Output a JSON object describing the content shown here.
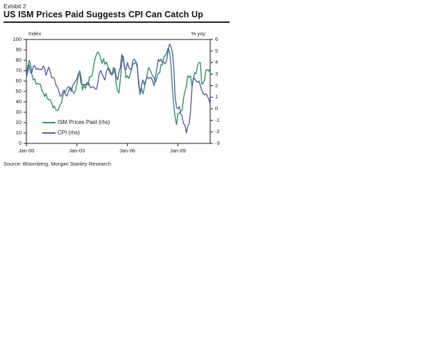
{
  "page": {
    "exhibit_label": "Exhibit 2",
    "title": "US ISM Prices Paid Suggests CPI Can Catch Up",
    "source": "Source: Bloomberg, Morgan Stanley Research"
  },
  "chart_data": {
    "type": "line",
    "title": "US ISM Prices Paid Suggests CPI Can Catch Up",
    "grid": false,
    "legend_position": "inside-bottom-left",
    "left_axis": {
      "label": "Index",
      "lim": [
        0,
        100
      ],
      "ticks": [
        100,
        90,
        80,
        70,
        60,
        50,
        40,
        30,
        20,
        10,
        0
      ]
    },
    "right_axis": {
      "label": "% yoy",
      "lim": [
        -3,
        6
      ],
      "ticks": [
        6,
        5,
        4,
        3,
        2,
        1,
        0,
        -1,
        -2,
        -3
      ]
    },
    "x_axis": {
      "frequency": "monthly",
      "start": "Jan-2000",
      "end": "Dec-2010",
      "months_total": 132,
      "tick_labels": [
        "Jan-00",
        "Jan-03",
        "Jan-06",
        "Jan-09"
      ],
      "tick_month_index": [
        0,
        36,
        72,
        108
      ]
    },
    "series": [
      {
        "name": "ISM Prices Paid (rhs)",
        "axis": "left",
        "color": "#2e8f62",
        "values": [
          65,
          74,
          80,
          76,
          66,
          61,
          62,
          57,
          58,
          57,
          57,
          51,
          49,
          45,
          48,
          43,
          42,
          42,
          39,
          34,
          36,
          32.5,
          31.5,
          33,
          37,
          39,
          45,
          50,
          50,
          53,
          54.5,
          54,
          53,
          50,
          48,
          51,
          57,
          65.5,
          70,
          63.5,
          51.5,
          56.5,
          53,
          57.5,
          56,
          64,
          64,
          66,
          75.5,
          81.5,
          86,
          88,
          86,
          81,
          77,
          81.5,
          76,
          78.5,
          74,
          72,
          69,
          65.5,
          73,
          71,
          58,
          50.5,
          48.5,
          62.5,
          78,
          84,
          74,
          63,
          65,
          62.5,
          66.5,
          71.5,
          77,
          76.5,
          78.5,
          73,
          61,
          47,
          53.5,
          47.5,
          53,
          59,
          65.5,
          73,
          71,
          68,
          65,
          63,
          59,
          63,
          67.5,
          68,
          76,
          75.5,
          83.5,
          84.5,
          87,
          91.5,
          88.5,
          77,
          53.5,
          37,
          25.5,
          18,
          29,
          29,
          31,
          32,
          43.5,
          50,
          55,
          65,
          63.5,
          65,
          55,
          61.5,
          68,
          67,
          75,
          78,
          77.5,
          57,
          57.5,
          61.5,
          70.5,
          71,
          69.5,
          72.5
        ]
      },
      {
        "name": "CPI (rhs)",
        "axis": "right",
        "color": "#5a5aa5",
        "values": [
          2.7,
          3.2,
          3.8,
          3.1,
          3.2,
          3.7,
          3.7,
          3.4,
          3.5,
          3.4,
          3.4,
          3.4,
          3.7,
          3.5,
          2.9,
          3.3,
          3.6,
          3.2,
          2.7,
          2.7,
          2.6,
          2.1,
          1.9,
          1.6,
          1.1,
          1.1,
          1.5,
          1.6,
          1.2,
          1.1,
          1.5,
          1.8,
          1.5,
          2.0,
          2.2,
          2.4,
          2.6,
          3.0,
          3.0,
          2.2,
          2.1,
          2.1,
          2.1,
          2.2,
          2.3,
          2.0,
          1.8,
          1.9,
          1.9,
          1.7,
          1.7,
          2.3,
          3.1,
          3.3,
          3.0,
          2.7,
          2.5,
          3.2,
          3.5,
          3.3,
          3.0,
          3.0,
          3.1,
          3.5,
          2.8,
          2.5,
          3.2,
          3.6,
          4.7,
          4.3,
          3.5,
          3.4,
          4.0,
          3.6,
          3.4,
          3.5,
          4.2,
          4.3,
          4.1,
          3.8,
          2.1,
          1.3,
          2.0,
          2.5,
          2.1,
          2.4,
          2.8,
          2.6,
          2.7,
          2.7,
          2.4,
          2.0,
          2.8,
          3.5,
          4.3,
          4.1,
          4.3,
          4.0,
          4.0,
          3.9,
          4.2,
          5.0,
          5.6,
          5.4,
          4.9,
          3.7,
          1.1,
          0.1,
          0.0,
          0.2,
          -0.4,
          -0.7,
          -1.3,
          -1.4,
          -2.1,
          -1.5,
          -1.3,
          -0.2,
          1.8,
          2.7,
          2.6,
          2.4,
          2.3,
          2.4,
          2.0,
          1.6,
          1.3,
          1.2,
          1.3,
          1.1,
          0.8,
          0.4
        ]
      }
    ]
  }
}
